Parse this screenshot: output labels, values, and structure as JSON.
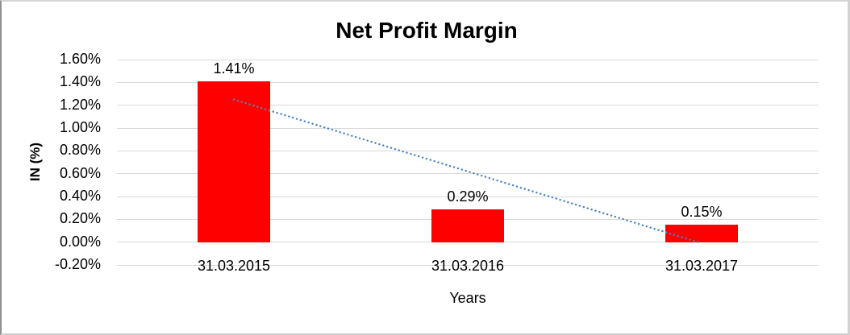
{
  "chart_data": {
    "type": "bar",
    "title": "Net Profit Margin",
    "xlabel": "Years",
    "ylabel": "IN (%)",
    "categories": [
      "31.03.2015",
      "31.03.2016",
      "31.03.2017"
    ],
    "values": [
      1.41,
      0.29,
      0.15
    ],
    "value_labels": [
      "1.41%",
      "0.29%",
      "0.15%"
    ],
    "ylim": [
      -0.2,
      1.6
    ],
    "yticks": [
      1.6,
      1.4,
      1.2,
      1.0,
      0.8,
      0.6,
      0.4,
      0.2,
      0.0,
      -0.2
    ],
    "ytick_labels": [
      "1.60%",
      "1.40%",
      "1.20%",
      "1.00%",
      "0.80%",
      "0.60%",
      "0.40%",
      "0.20%",
      "0.00%",
      "-0.20%"
    ],
    "grid": true,
    "legend": "none",
    "bar_color": "#ff0000",
    "gridline_color": "#d9d9d9",
    "text_color": "#000000",
    "trendline": {
      "style": "dotted",
      "color": "#4a82c6",
      "start_value": 1.25,
      "end_value": -0.01
    }
  }
}
